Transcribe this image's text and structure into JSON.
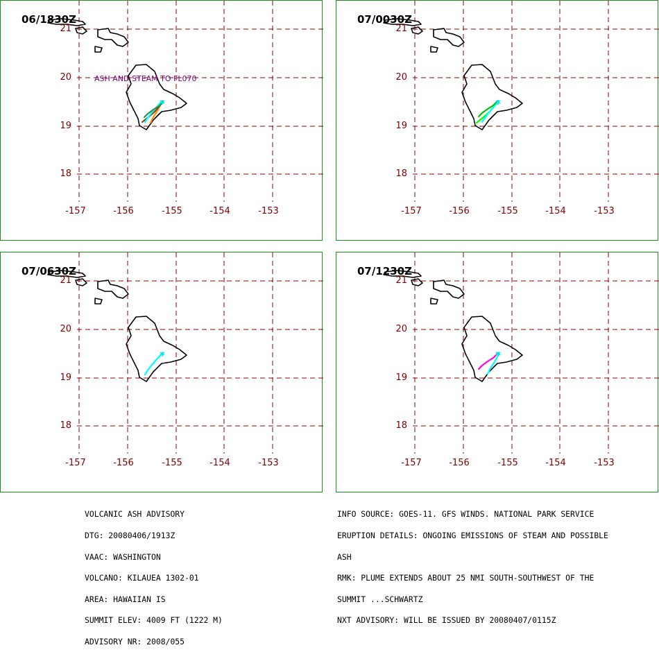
{
  "panels": [
    {
      "time": "06/1830Z",
      "annotation": "ASH AND STEAM TO FL070",
      "plume_colors": [
        "#ff8c00",
        "#8b4513",
        "#00ffff",
        "#2e8b57"
      ]
    },
    {
      "time": "07/0030Z",
      "annotation": "",
      "plume_colors": [
        "#00ff00",
        "#00ffff",
        "#00c000"
      ]
    },
    {
      "time": "07/0630Z",
      "annotation": "",
      "plume_colors": [
        "#00ffff"
      ]
    },
    {
      "time": "07/1230Z",
      "annotation": "",
      "plume_colors": [
        "#ff00ff",
        "#00ffff"
      ]
    }
  ],
  "grid": {
    "lat_labels": [
      "21",
      "20",
      "19",
      "18"
    ],
    "lon_labels": [
      "-157",
      "-156",
      "-155",
      "-154",
      "-153"
    ],
    "grid_color": "#8b0000",
    "label_color": "#800000"
  },
  "advisory_left": [
    "VOLCANIC ASH ADVISORY",
    "DTG: 20080406/1913Z",
    "VAAC: WASHINGTON",
    "VOLCANO: KILAUEA 1302-01",
    "AREA: HAWAIIAN IS",
    "SUMMIT ELEV: 4009 FT (1222 M)",
    "ADVISORY NR: 2008/055"
  ],
  "advisory_right": [
    "INFO SOURCE: GOES-11. GFS WINDS. NATIONAL PARK SERVICE",
    "ERUPTION DETAILS: ONGOING EMISSIONS OF STEAM AND POSSIBLE",
    "ASH",
    "RMK: PLUME EXTENDS ABOUT 25 NMI SOUTH-SOUTHWEST OF THE",
    "SUMMIT ...SCHWARTZ",
    "NXT ADVISORY: WILL BE ISSUED BY 20080407/0115Z"
  ]
}
